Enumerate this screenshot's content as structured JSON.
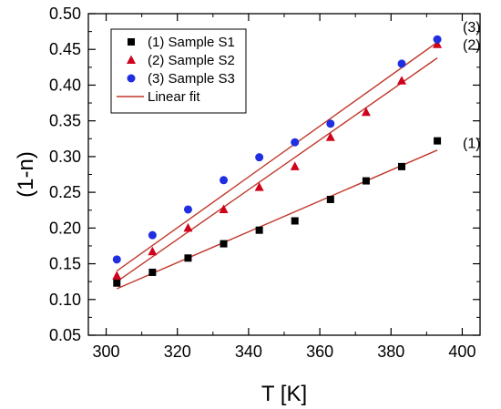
{
  "chart_data": {
    "type": "scatter",
    "xlabel": "T [K]",
    "ylabel": "(1-n)",
    "xlim": [
      295,
      405
    ],
    "ylim": [
      0.05,
      0.5
    ],
    "xticks": [
      "300",
      "320",
      "340",
      "360",
      "380",
      "400"
    ],
    "yticks": [
      "0.05",
      "0.10",
      "0.15",
      "0.20",
      "0.25",
      "0.30",
      "0.35",
      "0.40",
      "0.45",
      "0.50"
    ],
    "grid": false,
    "legend_position": "top-left",
    "series": [
      {
        "name": "(1) Sample S1",
        "marker": "square",
        "color": "#000000",
        "annotation": "(1)",
        "x": [
          303,
          313,
          323,
          333,
          343,
          353,
          363,
          373,
          383,
          393
        ],
        "y": [
          0.123,
          0.138,
          0.158,
          0.178,
          0.197,
          0.21,
          0.24,
          0.266,
          0.286,
          0.322
        ]
      },
      {
        "name": "(2) Sample S2",
        "marker": "triangle",
        "color": "#d0021b",
        "annotation": "(2)",
        "x": [
          303,
          313,
          323,
          333,
          343,
          353,
          363,
          373,
          383,
          393
        ],
        "y": [
          0.133,
          0.167,
          0.2,
          0.226,
          0.257,
          0.286,
          0.327,
          0.362,
          0.406,
          0.457
        ]
      },
      {
        "name": "(3) Sample S3",
        "marker": "circle",
        "color": "#1f2ee0",
        "annotation": "(3)",
        "x": [
          303,
          313,
          323,
          333,
          343,
          353,
          363,
          383,
          393
        ],
        "y": [
          0.156,
          0.19,
          0.226,
          0.267,
          0.299,
          0.32,
          0.346,
          0.43,
          0.464
        ]
      }
    ],
    "fits": {
      "name": "Linear fit",
      "color": "#c0392b",
      "lines": [
        {
          "x": [
            303,
            393
          ],
          "y": [
            0.115,
            0.309
          ]
        },
        {
          "x": [
            303,
            393
          ],
          "y": [
            0.125,
            0.438
          ]
        },
        {
          "x": [
            303,
            393
          ],
          "y": [
            0.14,
            0.46
          ]
        }
      ]
    }
  }
}
